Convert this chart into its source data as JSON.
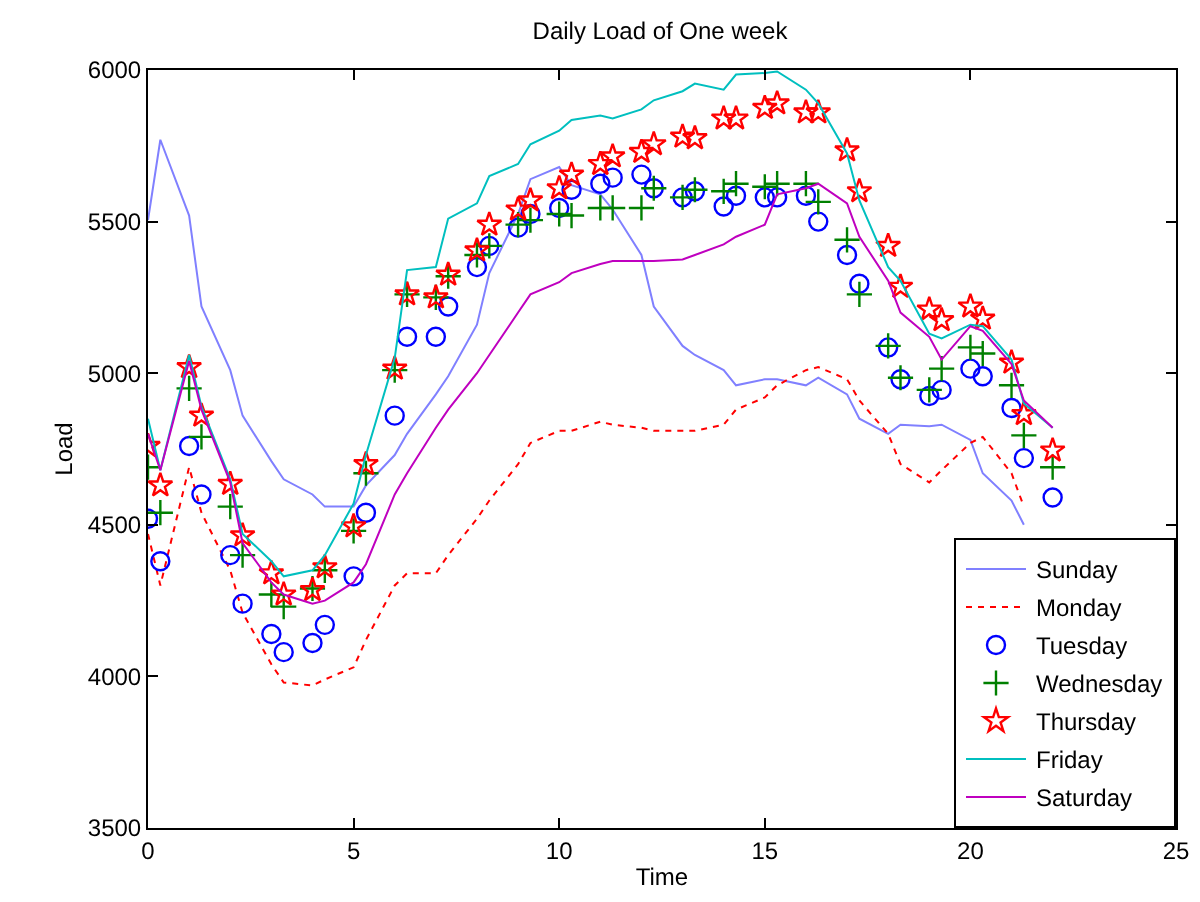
{
  "chart_data": {
    "type": "line",
    "title": "Daily Load of One week",
    "xlabel": "Time",
    "ylabel": "Load",
    "x": [
      0,
      0.3,
      1,
      1.3,
      2,
      2.3,
      3,
      3.3,
      4,
      4.3,
      5,
      5.3,
      6,
      6.3,
      7,
      7.3,
      8,
      8.3,
      9,
      9.3,
      10,
      10.3,
      11,
      11.3,
      12,
      12.3,
      13,
      13.3,
      14,
      14.3,
      15,
      15.3,
      16,
      16.3,
      17,
      17.3,
      18,
      18.3,
      19,
      19.3,
      20,
      20.3,
      21,
      21.3,
      22
    ],
    "xlim": [
      0,
      25
    ],
    "xticks": [
      0,
      5,
      10,
      15,
      20,
      25
    ],
    "ylim": [
      3500,
      6000
    ],
    "yticks": [
      3500,
      4000,
      4500,
      5000,
      5500,
      6000
    ],
    "grid": false,
    "legend": "bottom right",
    "series": [
      {
        "name": "Sunday",
        "color": "#8080ff",
        "marker": "none",
        "line_style": "solid",
        "values": [
          5505,
          5770,
          5520,
          5220,
          5010,
          4860,
          4710,
          4650,
          4600,
          4560,
          4560,
          4630,
          4730,
          4800,
          4930,
          4990,
          5160,
          5330,
          5525,
          5640,
          5680,
          5620,
          5590,
          5540,
          5390,
          5220,
          5090,
          5060,
          5010,
          4960,
          4980,
          4980,
          4960,
          4985,
          4930,
          4850,
          4800,
          4830,
          4825,
          4830,
          4780,
          4670,
          4580,
          4500,
          null
        ]
      },
      {
        "name": "Monday",
        "color": "#ff0000",
        "marker": "none",
        "line_style": "dotted",
        "values": [
          4470,
          4300,
          4690,
          4540,
          4350,
          4210,
          4040,
          3980,
          3970,
          3990,
          4030,
          4120,
          4300,
          4340,
          4340,
          4400,
          4520,
          4580,
          4700,
          4770,
          4810,
          4810,
          4840,
          4830,
          4820,
          4810,
          4810,
          4810,
          4830,
          4880,
          4920,
          4960,
          5010,
          5020,
          4980,
          4910,
          4800,
          4700,
          4640,
          4680,
          4770,
          4790,
          4670,
          4560,
          null
        ]
      },
      {
        "name": "Tuesday",
        "type": "scatter",
        "color": "#0000ff",
        "marker": "circle",
        "values": [
          4520,
          4380,
          4760,
          4600,
          4400,
          4240,
          4140,
          4080,
          4110,
          4170,
          4330,
          4540,
          4860,
          5120,
          5120,
          5220,
          5350,
          5420,
          5480,
          5525,
          5545,
          5605,
          5625,
          5645,
          5655,
          5610,
          5580,
          5600,
          5550,
          5585,
          5580,
          5580,
          5585,
          5500,
          5390,
          5295,
          5085,
          4980,
          4925,
          4945,
          5015,
          4990,
          4885,
          4720,
          4590
        ]
      },
      {
        "name": "Wednesday",
        "type": "scatter",
        "color": "#008000",
        "marker": "cross",
        "values": [
          4690,
          4540,
          4950,
          4790,
          4560,
          4400,
          4270,
          4230,
          4290,
          4350,
          4480,
          4670,
          5010,
          5260,
          5250,
          5320,
          5390,
          5420,
          5490,
          5505,
          5525,
          5520,
          5545,
          5545,
          5545,
          5610,
          5580,
          5605,
          5600,
          5625,
          5615,
          5625,
          5625,
          5565,
          5440,
          5260,
          5090,
          4985,
          4945,
          5015,
          5085,
          5065,
          4960,
          4795,
          4690
        ]
      },
      {
        "name": "Thursday",
        "type": "scatter",
        "color": "#ff0000",
        "marker": "star",
        "values": [
          4760,
          4630,
          5020,
          4860,
          4635,
          4465,
          4340,
          4270,
          4285,
          4360,
          4495,
          4700,
          5015,
          5260,
          5250,
          5325,
          5405,
          5490,
          5540,
          5570,
          5610,
          5655,
          5690,
          5715,
          5730,
          5755,
          5780,
          5775,
          5840,
          5840,
          5875,
          5890,
          5860,
          5860,
          5735,
          5600,
          5420,
          5285,
          5210,
          5175,
          5220,
          5180,
          5035,
          4865,
          4745
        ]
      },
      {
        "name": "Friday",
        "color": "#00bfbf",
        "marker": "none",
        "line_style": "solid",
        "values": [
          4850,
          4680,
          5060,
          4890,
          4650,
          4470,
          4380,
          4330,
          4350,
          4400,
          4570,
          4730,
          5050,
          5340,
          5350,
          5510,
          5560,
          5650,
          5690,
          5755,
          5800,
          5835,
          5850,
          5840,
          5870,
          5900,
          5930,
          5955,
          5935,
          5985,
          5990,
          5995,
          5935,
          5890,
          5725,
          5570,
          5350,
          5305,
          5130,
          5115,
          5160,
          5155,
          5045,
          4900,
          4820
        ]
      },
      {
        "name": "Saturday",
        "color": "#bf00bf",
        "marker": "none",
        "line_style": "solid",
        "values": [
          4800,
          4680,
          5040,
          4880,
          4640,
          4440,
          4310,
          4270,
          4240,
          4250,
          4310,
          4370,
          4600,
          4670,
          4820,
          4880,
          5000,
          5060,
          5200,
          5260,
          5300,
          5330,
          5360,
          5370,
          5370,
          5370,
          5375,
          5390,
          5425,
          5450,
          5490,
          5590,
          5610,
          5625,
          5560,
          5450,
          5305,
          5200,
          5120,
          5045,
          5155,
          5140,
          5030,
          4910,
          4820
        ]
      }
    ]
  }
}
